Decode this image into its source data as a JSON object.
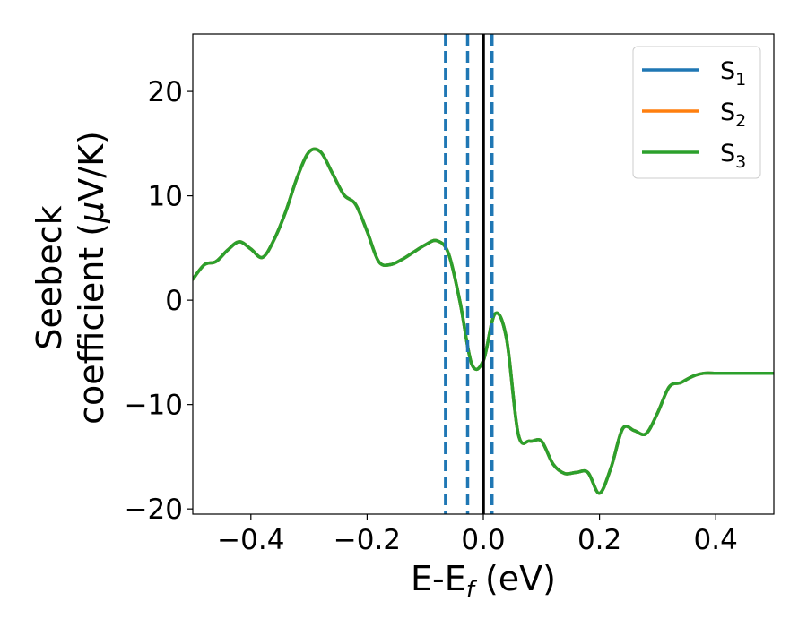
{
  "chart_data": {
    "type": "line",
    "title": "",
    "xlabel": {
      "base": "E-E",
      "sub": "f",
      "unit": " (eV)"
    },
    "ylabel": {
      "line1": "Seebeck",
      "line2a": "coefficient  (",
      "mu": "μ",
      "line2b": "V/K)"
    },
    "xlim": [
      -0.5,
      0.5
    ],
    "ylim": [
      -20.5,
      25.5
    ],
    "xticks": [
      -0.4,
      -0.2,
      0.0,
      0.2,
      0.4
    ],
    "xtick_labels": [
      "−0.4",
      "−0.2",
      "0.0",
      "0.2",
      "0.4"
    ],
    "yticks": [
      -20,
      -10,
      0,
      10,
      20
    ],
    "ytick_labels": [
      "−20",
      "−10",
      "0",
      "10",
      "20"
    ],
    "grid": false,
    "legend_position": "top-right",
    "x": [
      -0.5,
      -0.48,
      -0.46,
      -0.44,
      -0.42,
      -0.4,
      -0.38,
      -0.36,
      -0.34,
      -0.32,
      -0.3,
      -0.28,
      -0.26,
      -0.24,
      -0.22,
      -0.2,
      -0.18,
      -0.16,
      -0.14,
      -0.12,
      -0.1,
      -0.08,
      -0.06,
      -0.04,
      -0.02,
      0.0,
      0.02,
      0.04,
      0.06,
      0.08,
      0.1,
      0.12,
      0.14,
      0.16,
      0.18,
      0.2,
      0.22,
      0.24,
      0.26,
      0.28,
      0.3,
      0.32,
      0.34,
      0.36,
      0.38,
      0.4,
      0.42,
      0.44,
      0.46,
      0.48,
      0.5
    ],
    "series": [
      {
        "name": "S",
        "sub": "1",
        "color": "#1f77b4",
        "values": [
          2.0,
          3.4,
          3.7,
          4.8,
          5.6,
          4.9,
          4.1,
          5.8,
          8.5,
          11.8,
          14.2,
          14.2,
          12.2,
          10.1,
          9.2,
          6.6,
          3.7,
          3.4,
          3.9,
          4.6,
          5.3,
          5.7,
          4.5,
          -0.2,
          -6.1,
          -5.8,
          -1.3,
          -3.7,
          -12.8,
          -13.5,
          -13.5,
          -15.7,
          -16.6,
          -16.5,
          -16.5,
          -18.5,
          -16.0,
          -12.3,
          -12.5,
          -12.8,
          -10.8,
          -8.3,
          -7.9,
          -7.3,
          -7.0,
          -7.0,
          -7.0,
          -7.0,
          -7.0,
          -7.0,
          -7.0
        ]
      },
      {
        "name": "S",
        "sub": "2",
        "color": "#ff7f0e",
        "values": [
          2.0,
          3.4,
          3.7,
          4.8,
          5.6,
          4.9,
          4.1,
          5.8,
          8.5,
          11.8,
          14.2,
          14.2,
          12.2,
          10.1,
          9.2,
          6.6,
          3.7,
          3.4,
          3.9,
          4.6,
          5.3,
          5.7,
          4.5,
          -0.2,
          -6.1,
          -5.8,
          -1.3,
          -3.7,
          -12.8,
          -13.5,
          -13.5,
          -15.7,
          -16.6,
          -16.5,
          -16.5,
          -18.5,
          -16.0,
          -12.3,
          -12.5,
          -12.8,
          -10.8,
          -8.3,
          -7.9,
          -7.3,
          -7.0,
          -7.0,
          -7.0,
          -7.0,
          -7.0,
          -7.0,
          -7.0
        ]
      },
      {
        "name": "S",
        "sub": "3",
        "color": "#2ca02c",
        "values": [
          2.0,
          3.4,
          3.7,
          4.8,
          5.6,
          4.9,
          4.1,
          5.8,
          8.5,
          11.8,
          14.2,
          14.2,
          12.2,
          10.1,
          9.2,
          6.6,
          3.7,
          3.4,
          3.9,
          4.6,
          5.3,
          5.7,
          4.5,
          -0.2,
          -6.1,
          -5.8,
          -1.3,
          -3.7,
          -12.8,
          -13.5,
          -13.5,
          -15.7,
          -16.6,
          -16.5,
          -16.5,
          -18.5,
          -16.0,
          -12.3,
          -12.5,
          -12.8,
          -10.8,
          -8.3,
          -7.9,
          -7.3,
          -7.0,
          -7.0,
          -7.0,
          -7.0,
          -7.0,
          -7.0,
          -7.0
        ]
      }
    ],
    "vlines": [
      {
        "x": -0.065,
        "style": "dashed",
        "color": "#1f77b4"
      },
      {
        "x": -0.027,
        "style": "dashed",
        "color": "#1f77b4"
      },
      {
        "x": 0.015,
        "style": "dashed",
        "color": "#1f77b4"
      },
      {
        "x": 0.0,
        "style": "solid",
        "color": "#000000"
      }
    ]
  }
}
